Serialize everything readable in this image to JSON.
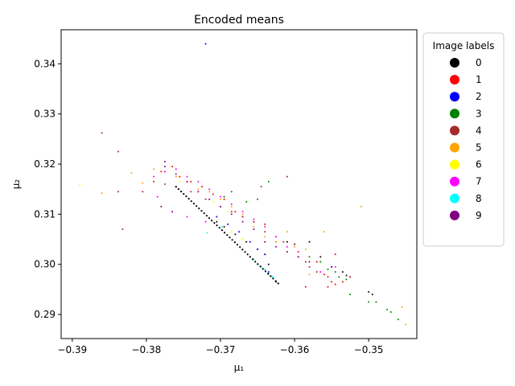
{
  "chart_data": {
    "type": "scatter",
    "title": "Encoded means",
    "xlabel": "μ₁",
    "ylabel": "μ₂",
    "xlim": [
      -0.3915,
      -0.3435
    ],
    "ylim": [
      0.2852,
      0.3468
    ],
    "xticks": [
      -0.39,
      -0.38,
      -0.37,
      -0.36,
      -0.35
    ],
    "xtick_labels": [
      "−0.39",
      "−0.38",
      "−0.37",
      "−0.36",
      "−0.35"
    ],
    "yticks": [
      0.29,
      0.3,
      0.31,
      0.32,
      0.33,
      0.34
    ],
    "ytick_labels": [
      "0.29",
      "0.30",
      "0.31",
      "0.32",
      "0.33",
      "0.34"
    ],
    "grid": false,
    "legend": {
      "title": "Image labels",
      "placement": "outside-right-top"
    },
    "series": [
      {
        "name": "0",
        "color": "#000000",
        "points": [
          [
            -0.3705,
            0.3085
          ],
          [
            -0.3695,
            0.3075
          ],
          [
            -0.368,
            0.306
          ],
          [
            -0.3665,
            0.3045
          ],
          [
            -0.365,
            0.303
          ],
          [
            -0.364,
            0.302
          ],
          [
            -0.3635,
            0.3
          ],
          [
            -0.363,
            0.2975
          ],
          [
            -0.3625,
            0.2965
          ],
          [
            -0.3622,
            0.2962
          ],
          [
            -0.361,
            0.3045
          ],
          [
            -0.36,
            0.304
          ],
          [
            -0.358,
            0.3045
          ],
          [
            -0.3565,
            0.3015
          ],
          [
            -0.355,
            0.2995
          ],
          [
            -0.3535,
            0.2985
          ],
          [
            -0.353,
            0.2978
          ],
          [
            -0.3525,
            0.2975
          ],
          [
            -0.35,
            0.2945
          ],
          [
            -0.3495,
            0.294
          ]
        ]
      },
      {
        "name": "1",
        "color": "#ff0000",
        "points": [
          [
            -0.378,
            0.3185
          ],
          [
            -0.3765,
            0.3195
          ],
          [
            -0.3755,
            0.3175
          ],
          [
            -0.374,
            0.3165
          ],
          [
            -0.3725,
            0.3155
          ],
          [
            -0.371,
            0.314
          ],
          [
            -0.3695,
            0.313
          ],
          [
            -0.368,
            0.3105
          ],
          [
            -0.367,
            0.3095
          ],
          [
            -0.3655,
            0.3085
          ],
          [
            -0.364,
            0.308
          ],
          [
            -0.3625,
            0.3055
          ],
          [
            -0.3615,
            0.3045
          ],
          [
            -0.3595,
            0.3025
          ],
          [
            -0.358,
            0.2995
          ],
          [
            -0.356,
            0.298
          ],
          [
            -0.355,
            0.2965
          ],
          [
            -0.3545,
            0.296
          ],
          [
            -0.3535,
            0.2965
          ],
          [
            -0.357,
            0.3005
          ],
          [
            -0.3585,
            0.2955
          ],
          [
            -0.3555,
            0.2955
          ],
          [
            -0.3545,
            0.302
          ]
        ]
      },
      {
        "name": "2",
        "color": "#0000ff",
        "points": [
          [
            -0.372,
            0.344
          ],
          [
            -0.3705,
            0.3095
          ],
          [
            -0.369,
            0.308
          ],
          [
            -0.3675,
            0.3065
          ],
          [
            -0.366,
            0.3045
          ],
          [
            -0.365,
            0.303
          ],
          [
            -0.364,
            0.302
          ],
          [
            -0.3635,
            0.2985
          ],
          [
            -0.363,
            0.2975
          ]
        ]
      },
      {
        "name": "3",
        "color": "#008000",
        "points": [
          [
            -0.3635,
            0.3165
          ],
          [
            -0.365,
            0.313
          ],
          [
            -0.3665,
            0.3125
          ],
          [
            -0.3695,
            0.3135
          ],
          [
            -0.3685,
            0.3145
          ],
          [
            -0.358,
            0.3015
          ],
          [
            -0.3565,
            0.3005
          ],
          [
            -0.3555,
            0.299
          ],
          [
            -0.3545,
            0.2985
          ],
          [
            -0.354,
            0.2975
          ],
          [
            -0.353,
            0.297
          ],
          [
            -0.3525,
            0.294
          ],
          [
            -0.35,
            0.2925
          ],
          [
            -0.349,
            0.2925
          ],
          [
            -0.3475,
            0.291
          ],
          [
            -0.347,
            0.2905
          ],
          [
            -0.346,
            0.289
          ]
        ]
      },
      {
        "name": "4",
        "color": "#a52a2a",
        "points": [
          [
            -0.386,
            0.3262
          ],
          [
            -0.3838,
            0.3225
          ],
          [
            -0.3838,
            0.3145
          ],
          [
            -0.3832,
            0.307
          ],
          [
            -0.3805,
            0.3145
          ],
          [
            -0.379,
            0.3165
          ],
          [
            -0.3775,
            0.316
          ],
          [
            -0.376,
            0.3155
          ],
          [
            -0.374,
            0.3145
          ],
          [
            -0.372,
            0.313
          ],
          [
            -0.37,
            0.3115
          ],
          [
            -0.3685,
            0.3105
          ],
          [
            -0.367,
            0.3095
          ],
          [
            -0.3655,
            0.3085
          ],
          [
            -0.364,
            0.3065
          ],
          [
            -0.3625,
            0.3045
          ],
          [
            -0.361,
            0.3175
          ],
          [
            -0.36,
            0.304
          ],
          [
            -0.3585,
            0.3005
          ],
          [
            -0.357,
            0.2985
          ],
          [
            -0.3555,
            0.2975
          ],
          [
            -0.3525,
            0.2975
          ],
          [
            -0.3645,
            0.3155
          ]
        ]
      },
      {
        "name": "5",
        "color": "#ffa500",
        "points": [
          [
            -0.386,
            0.3142
          ],
          [
            -0.382,
            0.3182
          ],
          [
            -0.3805,
            0.3162
          ],
          [
            -0.379,
            0.319
          ],
          [
            -0.3775,
            0.3185
          ],
          [
            -0.376,
            0.3175
          ],
          [
            -0.3745,
            0.3165
          ],
          [
            -0.373,
            0.315
          ],
          [
            -0.3715,
            0.3145
          ],
          [
            -0.37,
            0.313
          ],
          [
            -0.3685,
            0.3115
          ],
          [
            -0.367,
            0.31
          ],
          [
            -0.3655,
            0.3075
          ],
          [
            -0.364,
            0.3055
          ],
          [
            -0.3625,
            0.3045
          ],
          [
            -0.361,
            0.3065
          ],
          [
            -0.36,
            0.3035
          ],
          [
            -0.3585,
            0.303
          ],
          [
            -0.358,
            0.298
          ],
          [
            -0.356,
            0.3065
          ],
          [
            -0.351,
            0.3115
          ],
          [
            -0.3455,
            0.2915
          ],
          [
            -0.345,
            0.288
          ]
        ]
      },
      {
        "name": "6",
        "color": "#ffff00",
        "points": [
          [
            -0.389,
            0.3158
          ],
          [
            -0.3755,
            0.3165
          ],
          [
            -0.373,
            0.3145
          ],
          [
            -0.371,
            0.3125
          ],
          [
            -0.369,
            0.3105
          ],
          [
            -0.3685,
            0.3065
          ],
          [
            -0.367,
            0.305
          ]
        ]
      },
      {
        "name": "7",
        "color": "#ff00ff",
        "points": [
          [
            -0.379,
            0.3175
          ],
          [
            -0.3785,
            0.3135
          ],
          [
            -0.3775,
            0.3185
          ],
          [
            -0.376,
            0.319
          ],
          [
            -0.3745,
            0.3175
          ],
          [
            -0.373,
            0.3165
          ],
          [
            -0.3715,
            0.315
          ],
          [
            -0.37,
            0.3135
          ],
          [
            -0.3685,
            0.312
          ],
          [
            -0.367,
            0.3105
          ],
          [
            -0.3655,
            0.309
          ],
          [
            -0.364,
            0.3075
          ],
          [
            -0.3625,
            0.3055
          ],
          [
            -0.361,
            0.3035
          ],
          [
            -0.3595,
            0.3015
          ],
          [
            -0.358,
            0.2995
          ],
          [
            -0.3565,
            0.2985
          ],
          [
            -0.3545,
            0.2995
          ],
          [
            -0.3745,
            0.3095
          ],
          [
            -0.372,
            0.3085
          ]
        ]
      },
      {
        "name": "8",
        "color": "#00ffff",
        "points": [
          [
            -0.3718,
            0.3063
          ],
          [
            -0.3698,
            0.3075
          ],
          [
            -0.368,
            0.3045
          ],
          [
            -0.367,
            0.303
          ],
          [
            -0.366,
            0.3015
          ],
          [
            -0.3655,
            0.301
          ],
          [
            -0.365,
            0.3
          ],
          [
            -0.3645,
            0.2995
          ],
          [
            -0.364,
            0.299
          ],
          [
            -0.3635,
            0.298
          ],
          [
            -0.363,
            0.2975
          ]
        ]
      },
      {
        "name": "9",
        "color": "#800080",
        "points": [
          [
            -0.3775,
            0.3205
          ],
          [
            -0.3775,
            0.3195
          ],
          [
            -0.376,
            0.318
          ],
          [
            -0.3745,
            0.3165
          ],
          [
            -0.373,
            0.3145
          ],
          [
            -0.3715,
            0.313
          ],
          [
            -0.37,
            0.3115
          ],
          [
            -0.3685,
            0.31
          ],
          [
            -0.367,
            0.3085
          ],
          [
            -0.3655,
            0.307
          ],
          [
            -0.364,
            0.3045
          ],
          [
            -0.3625,
            0.3035
          ],
          [
            -0.361,
            0.3025
          ],
          [
            -0.3595,
            0.3015
          ],
          [
            -0.358,
            0.3005
          ],
          [
            -0.378,
            0.3115
          ],
          [
            -0.3765,
            0.3105
          ]
        ]
      }
    ],
    "dense_band": {
      "color": "#000000",
      "x": [
        -0.376,
        -0.3622
      ],
      "y": [
        0.3155,
        0.2962
      ]
    }
  }
}
